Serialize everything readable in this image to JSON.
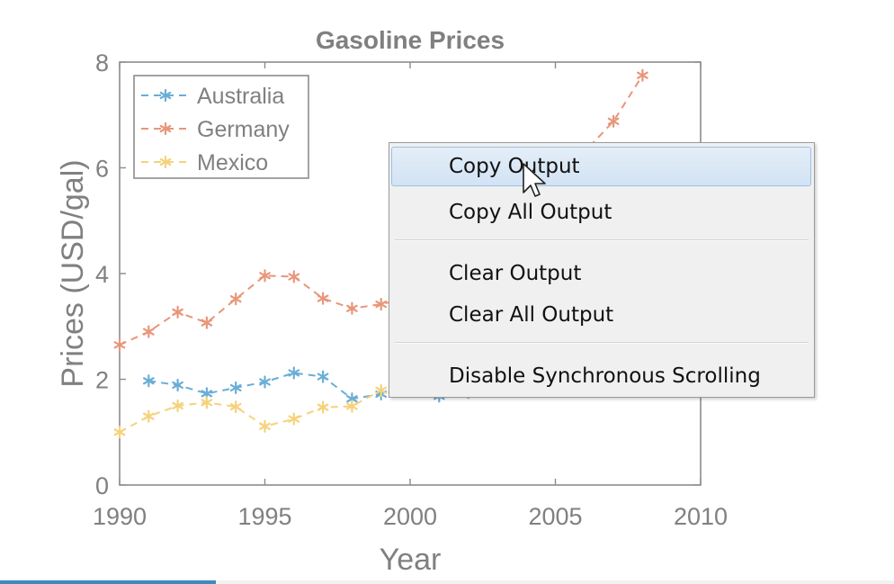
{
  "chart_data": {
    "type": "line",
    "title": "Gasoline Prices",
    "xlabel": "Year",
    "ylabel": "Prices (USD/gal)",
    "xlim": [
      1990,
      2010
    ],
    "ylim": [
      0,
      8
    ],
    "x_ticks": [
      1990,
      1995,
      2000,
      2005,
      2010
    ],
    "y_ticks": [
      0,
      2,
      4,
      6,
      8
    ],
    "grid": false,
    "legend_position": "top-left",
    "marker": "asterisk",
    "line_style": "dashed",
    "series": [
      {
        "name": "Australia",
        "color": "#6aaed6",
        "x": [
          1991,
          1992,
          1993,
          1994,
          1995,
          1996,
          1997,
          1998,
          1999,
          2000,
          2001,
          2002
        ],
        "y": [
          1.97,
          1.89,
          1.73,
          1.84,
          1.95,
          2.12,
          2.05,
          1.63,
          1.72,
          1.85,
          1.68,
          1.75
        ]
      },
      {
        "name": "Germany",
        "color": "#e8967a",
        "x": [
          1990,
          1991,
          1992,
          1993,
          1994,
          1995,
          1996,
          1997,
          1998,
          1999,
          2000,
          2001,
          2002,
          2003,
          2004,
          2005,
          2006,
          2007,
          2008
        ],
        "y": [
          2.65,
          2.9,
          3.27,
          3.07,
          3.52,
          3.96,
          3.94,
          3.53,
          3.34,
          3.42,
          3.55,
          3.75,
          4.0,
          4.5,
          5.0,
          5.6,
          6.3,
          6.88,
          7.75
        ]
      },
      {
        "name": "Mexico",
        "color": "#f5d27c",
        "x": [
          1990,
          1991,
          1992,
          1993,
          1994,
          1995,
          1996,
          1997,
          1998,
          1999
        ],
        "y": [
          1.0,
          1.3,
          1.5,
          1.56,
          1.48,
          1.11,
          1.25,
          1.47,
          1.49,
          1.79
        ]
      }
    ]
  },
  "context_menu": {
    "groups": [
      [
        "Copy Output",
        "Copy All Output"
      ],
      [
        "Clear Output",
        "Clear All Output"
      ],
      [
        "Disable Synchronous Scrolling"
      ]
    ],
    "highlighted": "Copy Output"
  }
}
